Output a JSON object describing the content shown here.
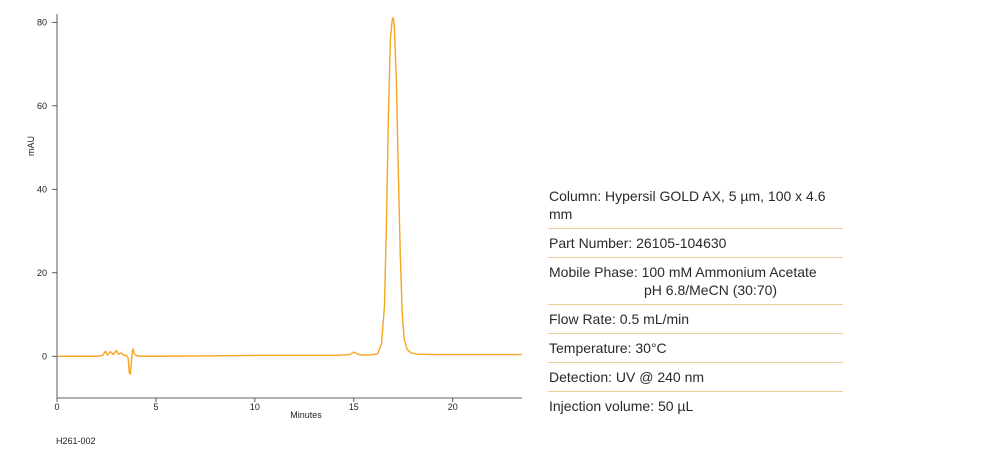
{
  "chart_data": {
    "type": "line",
    "xlabel": "Minutes",
    "ylabel": "mAU",
    "xlim": [
      0,
      23.5
    ],
    "ylim": [
      -10,
      82
    ],
    "xticks": [
      0,
      5,
      10,
      15,
      20
    ],
    "yticks": [
      0,
      20,
      40,
      60,
      80
    ],
    "grid": false,
    "line_color": "#f5a623",
    "series": [
      {
        "x": [
          0,
          2.0,
          2.3,
          2.45,
          2.55,
          2.7,
          2.85,
          3.0,
          3.1,
          3.25,
          3.4,
          3.5,
          3.6,
          3.65,
          3.7,
          3.75,
          3.8,
          3.85,
          3.9,
          4.0,
          4.2,
          5,
          8,
          10,
          12,
          14,
          14.8,
          15.0,
          15.2,
          15.4,
          15.8,
          16.2,
          16.4,
          16.55,
          16.65,
          16.75,
          16.85,
          16.95,
          17.0,
          17.05,
          17.15,
          17.25,
          17.35,
          17.45,
          17.55,
          17.7,
          17.9,
          18.2,
          19,
          20,
          22,
          23.5
        ],
        "y": [
          0,
          0,
          0.2,
          1.2,
          0.3,
          1.1,
          0.4,
          1.4,
          0.5,
          0.8,
          0.1,
          0.3,
          -0.5,
          -3.8,
          -4.3,
          -2.0,
          1.0,
          1.8,
          0.6,
          0.2,
          0,
          0,
          0.1,
          0.2,
          0.2,
          0.2,
          0.4,
          1.0,
          0.5,
          0.3,
          0.3,
          0.6,
          3.0,
          12,
          32,
          58,
          76,
          81,
          81,
          79,
          66,
          44,
          24,
          10,
          4,
          1.6,
          0.8,
          0.5,
          0.4,
          0.4,
          0.4,
          0.4
        ]
      }
    ]
  },
  "figure_id": "H261-002",
  "conditions": {
    "column": "Column: Hypersil GOLD AX, 5 µm, 100 x 4.6 mm",
    "part_number": "Part Number: 26105-104630",
    "mobile_phase_line1": "Mobile Phase: 100 mM Ammonium Acetate",
    "mobile_phase_line2": "pH 6.8/MeCN (30:70)",
    "flow_rate": "Flow Rate: 0.5 mL/min",
    "temperature": "Temperature: 30°C",
    "detection": "Detection: UV @ 240 nm",
    "injection_volume": "Injection volume: 50 µL"
  }
}
